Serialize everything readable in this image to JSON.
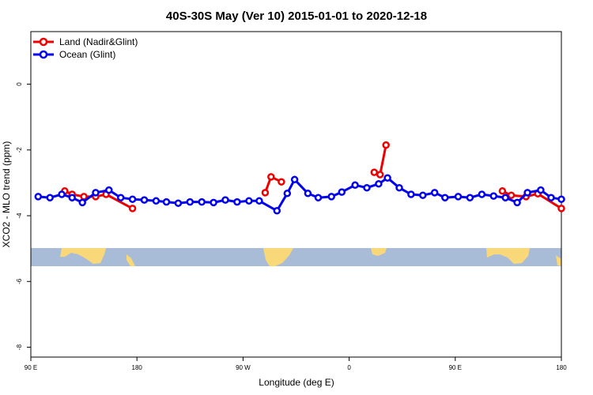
{
  "chart_data": {
    "type": "line",
    "title": "40S-30S May (Ver 10)   2015-01-01 to 2020-12-18",
    "xlabel": "Longitude (deg E)",
    "ylabel": "XCO2 - MLO trend (ppm)",
    "xlim": [
      90,
      270
    ],
    "ylim": [
      -8.3,
      1.6
    ],
    "x_ticks": [
      {
        "value": 90,
        "label": "90 E"
      },
      {
        "value": 126,
        "label": "180"
      },
      {
        "value": 162,
        "label": "90 W"
      },
      {
        "value": 198,
        "label": "0"
      },
      {
        "value": 234,
        "label": "90 E"
      },
      {
        "value": 270,
        "label": "180"
      }
    ],
    "y_ticks": [
      {
        "value": 0,
        "label": "0"
      },
      {
        "value": -2,
        "label": "-2"
      },
      {
        "value": -4,
        "label": "-4"
      },
      {
        "value": -6,
        "label": "-6"
      },
      {
        "value": -8,
        "label": "-8"
      }
    ],
    "legend_position": "top-left",
    "series": [
      {
        "name": "Land (Nadir&Glint)",
        "color": "#ee0000",
        "segments": [
          [
            [
              101.5,
              -3.25
            ],
            [
              104.0,
              -3.35
            ],
            [
              108.0,
              -3.42
            ],
            [
              112.0,
              -3.42
            ],
            [
              115.5,
              -3.35
            ],
            [
              124.5,
              -3.78
            ]
          ],
          [
            [
              169.5,
              -3.3
            ],
            [
              171.5,
              -2.82
            ],
            [
              175.0,
              -2.97
            ]
          ],
          [
            [
              206.5,
              -2.68
            ],
            [
              208.5,
              -2.75
            ],
            [
              210.5,
              -1.85
            ]
          ],
          [
            [
              250.0,
              -3.25
            ],
            [
              253.0,
              -3.38
            ],
            [
              258.0,
              -3.42
            ],
            [
              262.0,
              -3.33
            ],
            [
              270.0,
              -3.78
            ]
          ]
        ]
      },
      {
        "name": "Ocean (Glint)",
        "color": "#0000ee",
        "segments": [
          [
            [
              92.5,
              -3.42
            ],
            [
              96.5,
              -3.45
            ],
            [
              100.5,
              -3.35
            ],
            [
              104.0,
              -3.45
            ],
            [
              107.5,
              -3.6
            ],
            [
              112.0,
              -3.3
            ],
            [
              116.5,
              -3.22
            ],
            [
              120.5,
              -3.45
            ],
            [
              124.5,
              -3.5
            ],
            [
              128.5,
              -3.52
            ],
            [
              132.5,
              -3.55
            ],
            [
              136.0,
              -3.58
            ],
            [
              140.0,
              -3.62
            ],
            [
              144.0,
              -3.58
            ],
            [
              148.0,
              -3.58
            ],
            [
              152.0,
              -3.6
            ],
            [
              156.0,
              -3.52
            ],
            [
              160.0,
              -3.58
            ],
            [
              164.0,
              -3.55
            ],
            [
              167.5,
              -3.55
            ],
            [
              173.5,
              -3.85
            ],
            [
              177.0,
              -3.32
            ],
            [
              179.5,
              -2.9
            ],
            [
              184.0,
              -3.32
            ],
            [
              187.5,
              -3.45
            ],
            [
              192.0,
              -3.42
            ],
            [
              195.5,
              -3.28
            ],
            [
              200.0,
              -3.07
            ],
            [
              204.0,
              -3.15
            ],
            [
              208.0,
              -3.03
            ],
            [
              211.0,
              -2.85
            ],
            [
              215.0,
              -3.15
            ],
            [
              219.0,
              -3.35
            ],
            [
              223.0,
              -3.38
            ],
            [
              227.0,
              -3.3
            ],
            [
              230.5,
              -3.45
            ],
            [
              235.0,
              -3.42
            ],
            [
              239.0,
              -3.45
            ],
            [
              243.0,
              -3.35
            ],
            [
              247.0,
              -3.4
            ],
            [
              251.0,
              -3.45
            ],
            [
              255.0,
              -3.6
            ],
            [
              258.5,
              -3.3
            ],
            [
              263.0,
              -3.22
            ],
            [
              266.5,
              -3.45
            ],
            [
              270.0,
              -3.5
            ]
          ]
        ]
      }
    ],
    "map_strip": {
      "ocean_color": "#a8bcd8",
      "land_color": "#f8d878",
      "lat_range": [
        -40,
        -30
      ]
    }
  }
}
